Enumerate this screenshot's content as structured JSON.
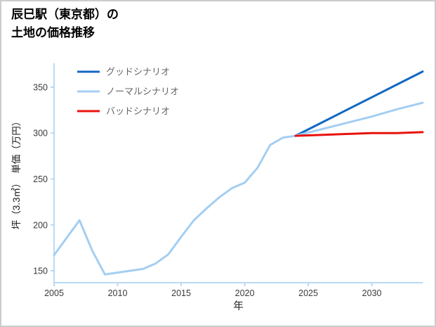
{
  "title": {
    "line1": "辰巳駅（東京都）の",
    "line2": "土地の価格推移"
  },
  "chart_data": {
    "type": "line",
    "title": "辰巳駅（東京都）の土地の価格推移",
    "xlabel": "年",
    "ylabel": "坪（3.3㎡）　単価（万円）",
    "xlim": [
      2005,
      2034
    ],
    "ylim": [
      137,
      376
    ],
    "x_ticks": [
      2005,
      2010,
      2015,
      2020,
      2025,
      2030
    ],
    "y_ticks": [
      150,
      200,
      250,
      300,
      350
    ],
    "grid": false,
    "legend_position": "upper-left",
    "colors": {
      "axis": "#b9d9f3",
      "tick_text": "#3a3a3a",
      "label_text": "#1a1a1a",
      "legend_text": "#666666",
      "good": "#1467c2",
      "normal": "#a4cef2",
      "bad": "#e8120e",
      "page_border": "#cccccc"
    },
    "series": [
      {
        "id": "history",
        "color": "#a4cef2",
        "x": [
          2005,
          2006,
          2007,
          2008,
          2009,
          2010,
          2011,
          2012,
          2013,
          2014,
          2015,
          2016,
          2017,
          2018,
          2019,
          2020,
          2021,
          2022,
          2023,
          2024
        ],
        "values": [
          167,
          186,
          205,
          172,
          146,
          148,
          150,
          152,
          158,
          168,
          187,
          205,
          218,
          230,
          240,
          246,
          262,
          287,
          295,
          297
        ]
      },
      {
        "id": "good-scenario",
        "color": "#1467c2",
        "x": [
          2024,
          2026,
          2028,
          2030,
          2032,
          2034
        ],
        "values": [
          297,
          311,
          325,
          339,
          353,
          367
        ]
      },
      {
        "id": "normal-scenario",
        "color": "#a4cef2",
        "x": [
          2024,
          2026,
          2028,
          2030,
          2032,
          2034
        ],
        "values": [
          297,
          304,
          311,
          318,
          326,
          333
        ]
      },
      {
        "id": "bad-scenario",
        "color": "#e8120e",
        "x": [
          2024,
          2026,
          2028,
          2030,
          2032,
          2034
        ],
        "values": [
          297,
          298,
          299,
          300,
          300,
          301
        ]
      }
    ],
    "legend": [
      {
        "label": "グッドシナリオ",
        "color": "#1467c2"
      },
      {
        "label": "ノーマルシナリオ",
        "color": "#a4cef2"
      },
      {
        "label": "バッドシナリオ",
        "color": "#e8120e"
      }
    ]
  }
}
